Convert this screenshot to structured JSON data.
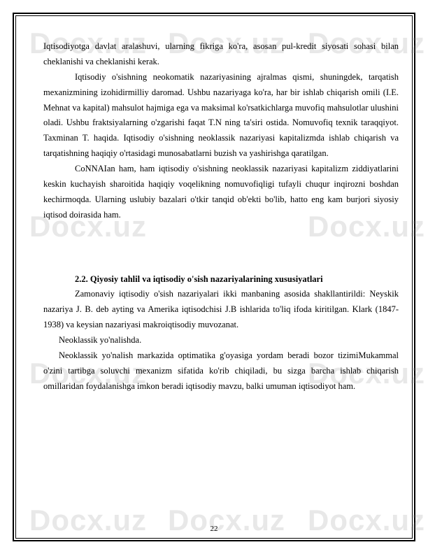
{
  "watermark": "Docx.uz",
  "paragraphs": {
    "p1": "Iqtisodiyotga davlat aralashuvi, ularning fikriga ko'ra, asosan pul-kredit siyosati sohasi bilan cheklanishi va cheklanishi kerak.",
    "p2": "Iqtisodiy o'sishning neokomatik nazariyasining ajralmas qismi, shuningdek, tarqatish mexanizmining izohidirmilliy daromad. Ushbu nazariyaga ko'ra, har bir ishlab chiqarish omili (I.E. Mehnat va kapital) mahsulot hajmiga ega va maksimal ko'rsatkichlarga muvofiq mahsulotlar ulushini oladi. Ushbu fraktsiyalarning o'zgarishi faqat T.N ning ta'siri ostida. Nomuvofiq texnik taraqqiyot. Taxminan T. haqida. Iqtisodiy o'sishning neoklassik nazariyasi kapitalizmda ishlab chiqarish va tarqatishning haqiqiy o'rtasidagi munosabatlarni buzish va yashirishga qaratilgan.",
    "p3": "CoNNAIan ham, ham iqtisodiy o'sishning neoklassik nazariyasi kapitalizm ziddiyatlarini keskin kuchayish sharoitida haqiqiy voqelikning nomuvofiqligi tufayli chuqur inqirozni boshdan kechirmoqda. Ularning uslubiy bazalari o'tkir tanqid ob'ekti bo'lib, hatto eng kam burjori siyosiy iqtisod doirasida ham.",
    "heading": "2.2. Qiyosiy tahlil va iqtisodiy o'sish nazariyalarining xususiyatlari",
    "p4": "Zamonaviy iqtisodiy o'sish nazariyalari ikki manbaning asosida shakllantirildi: Neyskik nazariya J. B. deb ayting va Amerika iqtisodchisi J.B ishlarida to'liq ifoda kiritilgan. Klark (1847-1938) va keysian nazariyasi makroiqtisodiy muvozanat.",
    "p5": "Neoklassik yo'nalishda.",
    "p6": "Neoklassik yo'nalish markazida optimatika g'oyasiga yordam beradi bozor tizimiMukammal o'zini tartibga soluvchi mexanizm sifatida ko'rib chiqiladi, bu sizga barcha ishlab chiqarish omillaridan foydalanishga imkon beradi iqtisodiy mavzu, balki umuman iqtisodiyot ham."
  },
  "pageNumber": "22",
  "colors": {
    "text": "#000000",
    "background": "#ffffff",
    "watermark": "rgba(128, 128, 128, 0.18)",
    "border": "#000000"
  }
}
